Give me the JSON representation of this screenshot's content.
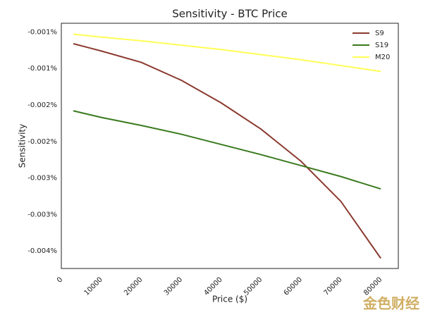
{
  "chart_data": {
    "type": "line",
    "title": "Sensitivity - BTC Price",
    "xlabel": "Price ($)",
    "ylabel": "Sensitivity",
    "x": [
      3000,
      10000,
      20000,
      30000,
      40000,
      50000,
      60000,
      70000,
      80000
    ],
    "series": [
      {
        "name": "S9",
        "color": "#8b3a2f",
        "values": [
          -0.00066,
          -0.00076,
          -0.000915,
          -0.00116,
          -0.00147,
          -0.00183,
          -0.00227,
          -0.00282,
          -0.0036
        ]
      },
      {
        "name": "S19",
        "color": "#3a7a1e",
        "values": [
          -0.00158,
          -0.00167,
          -0.00178,
          -0.0019,
          -0.00204,
          -0.00218,
          -0.00233,
          -0.00248,
          -0.00265
        ]
      },
      {
        "name": "M20",
        "color": "#ffff55",
        "values": [
          -0.00053,
          -0.00057,
          -0.00062,
          -0.00068,
          -0.00074,
          -0.00081,
          -0.00088,
          -0.00096,
          -0.00104
        ]
      }
    ],
    "xlim": [
      0,
      84400
    ],
    "xticks": [
      0,
      10000,
      20000,
      30000,
      40000,
      50000,
      60000,
      70000,
      80000
    ],
    "ylim": [
      -0.00374,
      -0.00038
    ],
    "yticks": [
      {
        "value": -0.0005,
        "label": "-0.001%"
      },
      {
        "value": -0.001,
        "label": "-0.001%"
      },
      {
        "value": -0.0015,
        "label": "-0.002%"
      },
      {
        "value": -0.002,
        "label": "-0.002%"
      },
      {
        "value": -0.0025,
        "label": "-0.003%"
      },
      {
        "value": -0.003,
        "label": "-0.003%"
      },
      {
        "value": -0.0035,
        "label": "-0.004%"
      }
    ],
    "legend": "upper right",
    "grid": false
  },
  "watermark": "金色财经"
}
